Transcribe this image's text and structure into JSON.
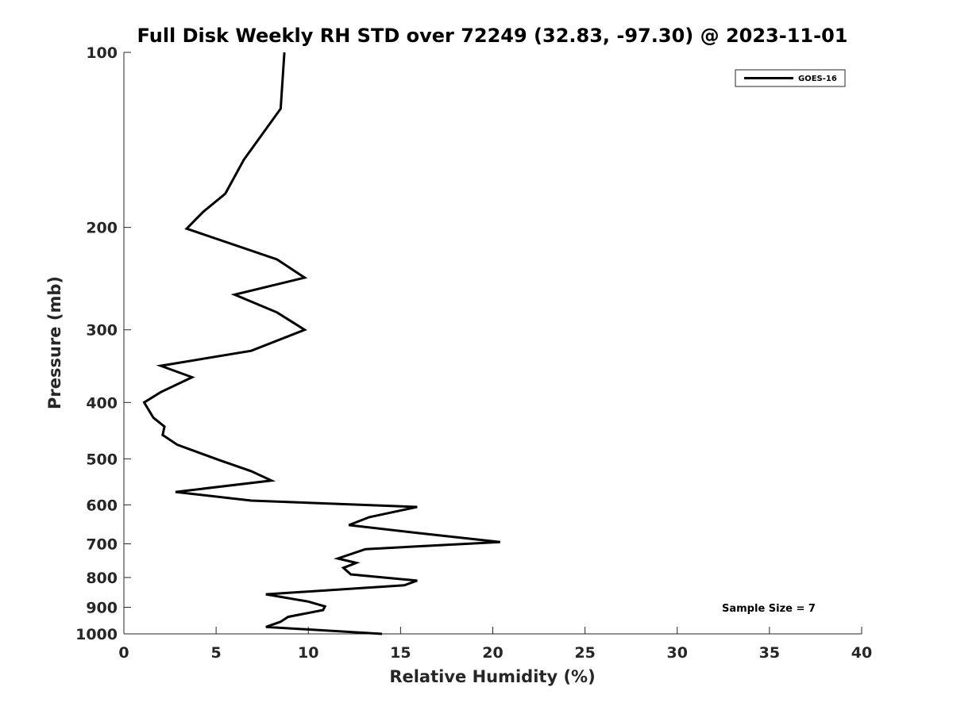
{
  "chart_data": {
    "type": "line",
    "title": "Full Disk Weekly RH STD over 72249 (32.83, -97.30) @ 2023-11-01",
    "xlabel": "Relative Humidity (%)",
    "ylabel": "Pressure (mb)",
    "xlim": [
      0,
      40
    ],
    "ylim": [
      100,
      1000
    ],
    "yscale": "log",
    "y_reversed": true,
    "grid": false,
    "legend_position": "top-right",
    "xticks": [
      0,
      5,
      10,
      15,
      20,
      25,
      30,
      35,
      40
    ],
    "yticks": [
      100,
      200,
      300,
      400,
      500,
      600,
      700,
      800,
      900,
      1000
    ],
    "annotation": "Sample Size = 7",
    "series": [
      {
        "name": "GOES-16",
        "color": "#000000",
        "x": [
          8.7,
          8.5,
          6.5,
          5.5,
          4.3,
          3.4,
          8.3,
          9.8,
          6.0,
          8.3,
          9.8,
          6.9,
          2.0,
          3.7,
          2.0,
          1.1,
          1.6,
          2.2,
          2.1,
          2.9,
          5.2,
          6.9,
          8.0,
          2.8,
          6.9,
          15.9,
          13.3,
          12.2,
          15.8,
          20.4,
          13.1,
          11.6,
          12.6,
          11.9,
          12.3,
          15.9,
          15.2,
          7.7,
          10.0,
          10.9,
          10.8,
          8.9,
          8.5,
          7.7,
          14.0
        ],
        "y": [
          100,
          125,
          153,
          175,
          188,
          201,
          227,
          244,
          261,
          280,
          300,
          326,
          346,
          362,
          384,
          400,
          425,
          440,
          455,
          473,
          503,
          525,
          545,
          570,
          590,
          605,
          630,
          650,
          670,
          695,
          715,
          742,
          755,
          770,
          790,
          810,
          825,
          855,
          880,
          897,
          910,
          935,
          953,
          973,
          1000
        ]
      }
    ]
  }
}
